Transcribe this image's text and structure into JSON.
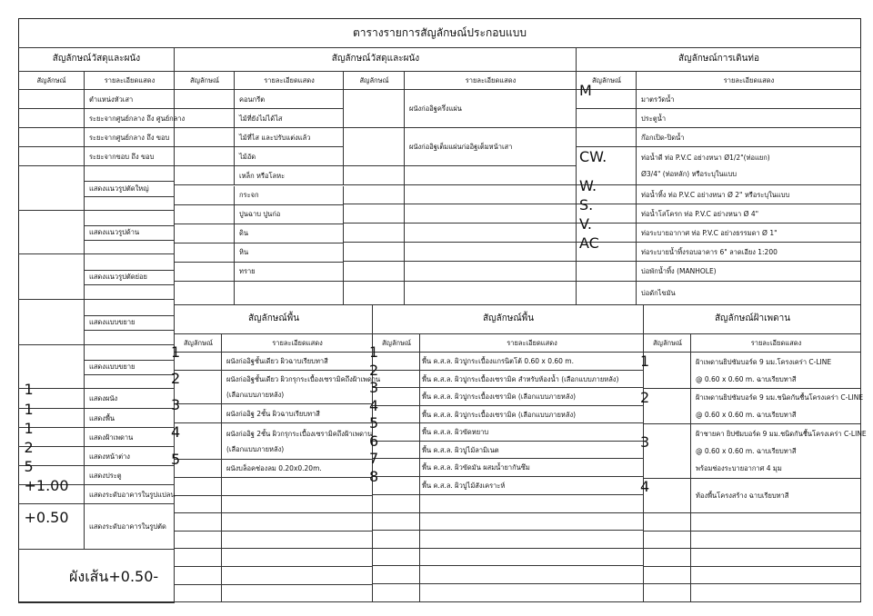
{
  "title": "ตารางรายการสัญลักษณ์ประกอบแบบ",
  "col_symbol": "สัญลักษณ์",
  "col_desc": "รายละเอียดแสดง",
  "left": {
    "header": "สัญลักษณ์วัสดุและผนัง",
    "rows": [
      {
        "icon": "column-circle-icon",
        "lines": [
          "ตำแหน่งหัวเสา"
        ]
      },
      {
        "icon": "dimension-center-center-icon",
        "lines": [
          "ระยะจากศูนย์กลาง ถึง ศูนย์กลาง"
        ]
      },
      {
        "icon": "dimension-center-edge-icon",
        "lines": [
          "ระยะจากศูนย์กลาง ถึง ขอบ"
        ]
      },
      {
        "icon": "dimension-edge-edge-icon",
        "lines": [
          "ระยะจากขอบ ถึง ขอบ"
        ]
      },
      {
        "icon": "major-section-marker-icon",
        "lines": [
          "แสดงแนวรูปตัดใหญ่"
        ]
      },
      {
        "icon": "elevation-marker-icon",
        "lines": [
          "แสดงแนวรูปด้าน"
        ]
      },
      {
        "icon": "minor-section-marker-icon",
        "lines": [
          "แสดงแนวรูปตัดย่อย"
        ]
      },
      {
        "icon": "detail-marker-icon",
        "lines": [
          "แสดงแบบขยาย"
        ]
      },
      {
        "icon": "detail-circle-icon",
        "lines": [
          "แสดงแบบขยาย"
        ]
      },
      {
        "icon": "wall-triangle-icon",
        "label": "1",
        "lines": [
          "แสดงผนัง"
        ]
      },
      {
        "icon": "floor-square-icon",
        "label": "1",
        "lines": [
          "แสดงพื้น"
        ]
      },
      {
        "icon": "ceiling-ellipse-icon",
        "label": "1",
        "lines": [
          "แสดงฝ้าเพดาน"
        ]
      },
      {
        "icon": "window-hexagon-icon",
        "label": "2",
        "lines": [
          "แสดงหน้าต่าง"
        ]
      },
      {
        "icon": "door-circle-icon",
        "label": "5",
        "lines": [
          "แสดงประตู"
        ]
      },
      {
        "icon": "level-plan-text",
        "label": "+1.00",
        "lines": [
          "แสดงระดับอาคารในรูปแปลน"
        ]
      },
      {
        "icon": "level-section-icon",
        "label": "+0.50",
        "lines": [
          "แสดงระดับอาคารในรูปตัด"
        ]
      },
      {
        "icon": "legend-box-icon",
        "label": "ผังเส้น",
        "sublabel": "+0.50",
        "dash": "-",
        "lines": []
      }
    ]
  },
  "materials_a": {
    "header": "สัญลักษณ์วัสดุและผนัง",
    "rows": [
      {
        "icon": "concrete-hatch-icon",
        "lines": [
          "คอนกรีต"
        ]
      },
      {
        "icon": "rough-wood-icon",
        "lines": [
          "ไม้ที่ยังไม่ได้ไส"
        ]
      },
      {
        "icon": "planed-wood-hatch-icon",
        "lines": [
          "ไม้ที่ไส และปรับแต่งแล้ว"
        ]
      },
      {
        "icon": "plywood-hatch-icon",
        "lines": [
          "ไม้อัด"
        ]
      },
      {
        "icon": "steel-hatch-icon",
        "lines": [
          "เหล็ก หรือโลหะ"
        ]
      },
      {
        "icon": "glass-icon",
        "lines": [
          "กระจก"
        ]
      },
      {
        "icon": "plaster-hatch-icon",
        "lines": [
          "ปูนฉาบ ปูนก่อ"
        ]
      },
      {
        "icon": "soil-hatch-icon",
        "lines": [
          "ดิน"
        ]
      },
      {
        "icon": "stone-hatch-icon",
        "lines": [
          "หิน"
        ]
      },
      {
        "icon": "sand-hatch-icon",
        "lines": [
          "ทราย"
        ]
      }
    ]
  },
  "materials_b": {
    "rows": [
      {
        "icon": "half-brick-wall-icon",
        "lines": [
          "ผนังก่ออิฐครึ่งแผ่น"
        ]
      },
      {
        "icon": "full-brick-wall-icon",
        "lines": [
          "ผนังก่ออิฐเต็มแผ่นก่ออิฐเต็มหน้าเสา"
        ]
      }
    ]
  },
  "pipes": {
    "header": "สัญลักษณ์การเดินท่อ",
    "rows": [
      {
        "icon": "water-meter-icon",
        "label": "M",
        "lines": [
          "มาตรวัดน้ำ"
        ]
      },
      {
        "icon": "gate-valve-icon",
        "lines": [
          "ประตูน้ำ"
        ]
      },
      {
        "icon": "faucet-icon",
        "lines": [
          "ก๊อกเปิด-ปิดน้ำ"
        ]
      },
      {
        "icon": "cold-water-pipe-icon",
        "label": "CW.",
        "lines": [
          "ท่อน้ำดี ท่อ P.V.C อย่างหนา Ø1/2\"(ท่อแยก)",
          "Ø3/4\" (ท่อหลัก) หรือระบุในแบบ"
        ]
      },
      {
        "icon": "waste-pipe-icon",
        "label": "W.",
        "lines": [
          "ท่อน้ำทิ้ง ท่อ P.V.C อย่างหนา Ø 2\" หรือระบุในแบบ"
        ]
      },
      {
        "icon": "sewage-pipe-icon",
        "label": "S.",
        "lines": [
          "ท่อน้ำโสโครก ท่อ P.V.C อย่างหนา Ø 4\""
        ]
      },
      {
        "icon": "vent-pipe-icon",
        "label": "V.",
        "lines": [
          "ท่อระบายอากาศ ท่อ P.V.C อย่างธรรมดา Ø 1\""
        ]
      },
      {
        "icon": "drain-pipe-icon",
        "label": "AC",
        "lines": [
          "ท่อระบายน้ำทิ้งรอบอาคาร 6\" ลาดเอียง 1:200"
        ]
      },
      {
        "icon": "manhole-icon",
        "lines": [
          "บ่อพักน้ำทิ้ง (MANHOLE)"
        ]
      },
      {
        "icon": "grease-trap-icon",
        "lines": [
          "บ่อดักไขมัน"
        ]
      }
    ]
  },
  "walls": {
    "header": "สัญลักษณ์พื้น",
    "rows": [
      {
        "icon": "wall-triangle-icon",
        "label": "1",
        "lines": [
          "ผนังก่ออิฐชั้นเดียว ผิวฉาบเรียบทาสี"
        ]
      },
      {
        "icon": "wall-triangle-icon",
        "label": "2",
        "lines": [
          "ผนังก่ออิฐชั้นเดียว ผิวกรุกระเบื้องเซรามิคถึงฝ้าเพดาน",
          "(เลือกแบบภายหลัง)"
        ]
      },
      {
        "icon": "wall-triangle-icon",
        "label": "3",
        "lines": [
          "ผนังก่ออิฐ 2ชั้น  ผิวฉาบเรียบทาสี"
        ]
      },
      {
        "icon": "wall-triangle-icon",
        "label": "4",
        "lines": [
          "ผนังก่ออิฐ 2ชั้น   ผิวกรุกระเบื้องเซรามิคถึงฝ้าเพดาน",
          "(เลือกแบบภายหลัง)"
        ]
      },
      {
        "icon": "wall-triangle-icon",
        "label": "5",
        "lines": [
          "ผนังบล็อคช่องลม 0.20x0.20m."
        ]
      }
    ]
  },
  "floors": {
    "header": "สัญลักษณ์พื้น",
    "rows": [
      {
        "icon": "floor-square-icon",
        "label": "1",
        "lines": [
          "พื้น ค.ส.ล. ผิวปูกระเบื้องแกรนิตโต้ 0.60 x 0.60 m."
        ]
      },
      {
        "icon": "floor-square-icon",
        "label": "2",
        "lines": [
          "พื้น ค.ส.ล. ผิวปูกระเบื้องเซรามิค สำหรับห้องน้ำ (เลือกแบบภายหลัง)"
        ]
      },
      {
        "icon": "floor-square-icon",
        "label": "3",
        "lines": [
          "พื้น ค.ส.ล. ผิวปูกระเบื้องเซรามิค (เลือกแบบภายหลัง)"
        ]
      },
      {
        "icon": "floor-square-icon",
        "label": "4",
        "lines": [
          "พื้น ค.ส.ล. ผิวปูกระเบื้องเซรามิค (เลือกแบบภายหลัง)"
        ]
      },
      {
        "icon": "floor-square-icon",
        "label": "5",
        "lines": [
          "พื้น ค.ส.ล. ผิวขัดหยาบ"
        ]
      },
      {
        "icon": "floor-square-icon",
        "label": "6",
        "lines": [
          "พื้น ค.ส.ล. ผิวปูไม้ลามิเนต"
        ]
      },
      {
        "icon": "floor-square-icon",
        "label": "7",
        "lines": [
          "พื้น ค.ส.ล. ผิวขัดมัน ผสมน้ำยากันซึม"
        ]
      },
      {
        "icon": "floor-square-icon",
        "label": "8",
        "lines": [
          "พื้น ค.ส.ล. ผิวปูไม้สังเคราะห์"
        ]
      }
    ]
  },
  "ceilings": {
    "header": "สัญลักษณ์ฝ้าเพดาน",
    "rows": [
      {
        "icon": "ceiling-ellipse-icon",
        "label": "1",
        "lines": [
          "ฝ้าเพดานยิปซัมบอร์ด 9 มม.โครงเคร่า C-LINE",
          "@ 0.60 x 0.60 m. ฉาบเรียบทาสี"
        ]
      },
      {
        "icon": "ceiling-ellipse-icon",
        "label": "2",
        "lines": [
          "ฝ้าเพดานยิปซัมบอร์ด 9 มม.ชนิดกันชื้นโครงเคร่า C-LINE",
          "@ 0.60 x 0.60 m. ฉาบเรียบทาสี"
        ]
      },
      {
        "icon": "ceiling-ellipse-icon",
        "label": "3",
        "lines": [
          "ฝ้าชายคา ยิปซัมบอร์ด 9 มม.ชนิดกันชื้นโครงเคร่า C-LINE",
          "@ 0.60 x 0.60 m. ฉาบเรียบทาสี",
          "พร้อมช่องระบายอากาศ 4 มุม"
        ]
      },
      {
        "icon": "ceiling-ellipse-icon",
        "label": "4",
        "lines": [
          "ท้องพื้นโครงสร้าง ฉาบเรียบทาสี"
        ]
      }
    ]
  }
}
